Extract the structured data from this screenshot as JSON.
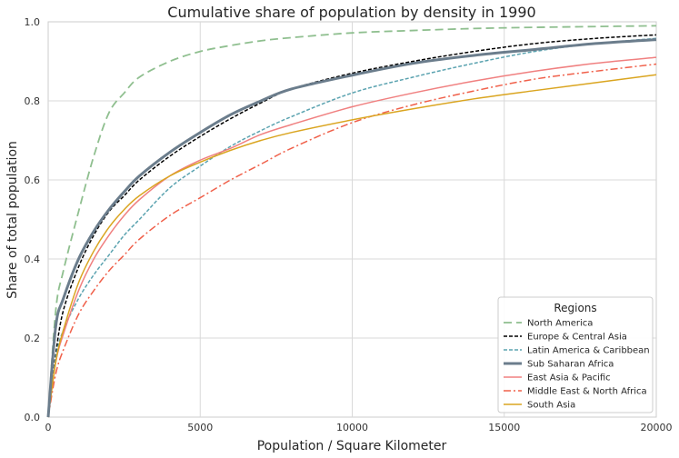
{
  "chart_data": {
    "type": "line",
    "title": "Cumulative share of population by density in 1990",
    "xlabel": "Population / Square Kilometer",
    "ylabel": "Share of total population",
    "xlim": [
      0,
      20000
    ],
    "ylim": [
      0,
      1.0
    ],
    "xticks": [
      0,
      5000,
      10000,
      15000,
      20000
    ],
    "yticks": [
      0.0,
      0.2,
      0.4,
      0.6,
      0.8,
      1.0
    ],
    "xtick_labels": [
      "0",
      "5000",
      "10000",
      "15000",
      "20000"
    ],
    "ytick_labels": [
      "0.0",
      "0.2",
      "0.4",
      "0.6",
      "0.8",
      "1.0"
    ],
    "grid": true,
    "legend": {
      "title": "Regions",
      "position": "lower-right"
    },
    "x": [
      0,
      250,
      500,
      1000,
      1500,
      2000,
      2500,
      3000,
      4000,
      5000,
      6000,
      7000,
      8000,
      10000,
      12000,
      14000,
      16000,
      18000,
      20000
    ],
    "series": [
      {
        "name": "North America",
        "color": "#8fbf8f",
        "dash": "long",
        "width": 1.8,
        "values": [
          0.0,
          0.27,
          0.37,
          0.52,
          0.66,
          0.77,
          0.82,
          0.86,
          0.9,
          0.925,
          0.94,
          0.952,
          0.96,
          0.972,
          0.978,
          0.983,
          0.986,
          0.988,
          0.99
        ]
      },
      {
        "name": "Europe & Central Asia",
        "color": "#000000",
        "dash": "short",
        "width": 1.5,
        "values": [
          0.0,
          0.16,
          0.27,
          0.38,
          0.46,
          0.52,
          0.56,
          0.6,
          0.66,
          0.71,
          0.755,
          0.795,
          0.83,
          0.87,
          0.9,
          0.925,
          0.945,
          0.958,
          0.967
        ]
      },
      {
        "name": "Latin America & Caribbean",
        "color": "#5ba3b0",
        "dash": "short",
        "width": 1.5,
        "values": [
          0.0,
          0.15,
          0.22,
          0.3,
          0.36,
          0.41,
          0.46,
          0.5,
          0.58,
          0.635,
          0.685,
          0.725,
          0.76,
          0.82,
          0.86,
          0.895,
          0.925,
          0.945,
          0.958
        ]
      },
      {
        "name": "Sub Saharan Africa",
        "color": "#6b7d8c",
        "dash": "solid",
        "width": 3,
        "values": [
          0.0,
          0.23,
          0.3,
          0.4,
          0.47,
          0.525,
          0.57,
          0.61,
          0.67,
          0.72,
          0.765,
          0.8,
          0.83,
          0.865,
          0.895,
          0.915,
          0.93,
          0.945,
          0.955
        ]
      },
      {
        "name": "East Asia & Pacific",
        "color": "#f08080",
        "dash": "solid",
        "width": 1.5,
        "values": [
          0.0,
          0.14,
          0.21,
          0.32,
          0.4,
          0.46,
          0.51,
          0.55,
          0.61,
          0.65,
          0.68,
          0.715,
          0.74,
          0.785,
          0.82,
          0.85,
          0.875,
          0.895,
          0.91
        ]
      },
      {
        "name": "Middle East & North Africa",
        "color": "#f0604a",
        "dash": "dashdot",
        "width": 1.5,
        "values": [
          0.0,
          0.11,
          0.17,
          0.26,
          0.32,
          0.37,
          0.41,
          0.45,
          0.51,
          0.555,
          0.6,
          0.64,
          0.68,
          0.745,
          0.79,
          0.825,
          0.855,
          0.875,
          0.893
        ]
      },
      {
        "name": "South Asia",
        "color": "#daa520",
        "dash": "solid",
        "width": 1.5,
        "values": [
          0.0,
          0.14,
          0.22,
          0.34,
          0.42,
          0.48,
          0.525,
          0.56,
          0.61,
          0.645,
          0.675,
          0.7,
          0.72,
          0.752,
          0.78,
          0.805,
          0.826,
          0.846,
          0.866
        ]
      }
    ]
  }
}
